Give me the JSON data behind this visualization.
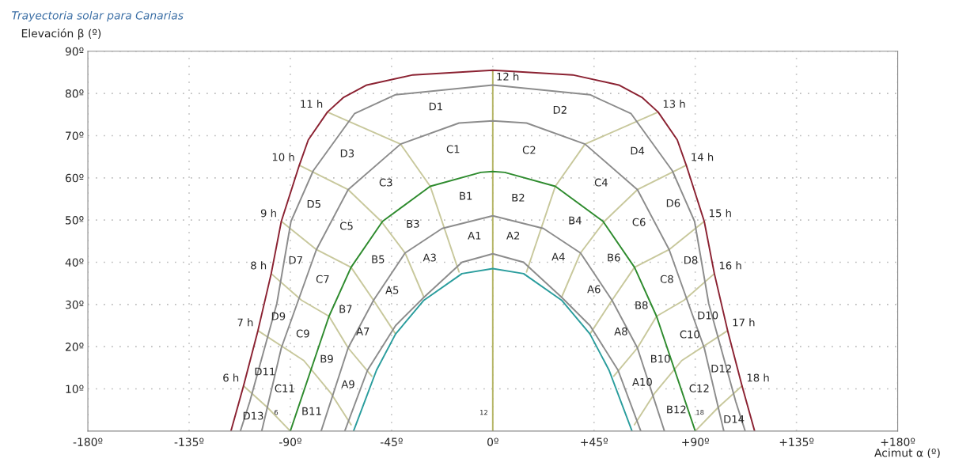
{
  "chart_data": {
    "type": "line",
    "title": "Trayectoria solar para Canarias",
    "xlabel": "Acimut α (º)",
    "ylabel": "Elevación β (º)",
    "xlim": [
      -180,
      180
    ],
    "ylim": [
      0,
      90
    ],
    "xticks": [
      {
        "value": -180,
        "label": "-180º"
      },
      {
        "value": -135,
        "label": "-135º"
      },
      {
        "value": -90,
        "label": "-90º"
      },
      {
        "value": -45,
        "label": "-45º"
      },
      {
        "value": 0,
        "label": "0º"
      },
      {
        "value": 45,
        "label": "+45º"
      },
      {
        "value": 90,
        "label": "+90º"
      },
      {
        "value": 135,
        "label": "+135º"
      },
      {
        "value": 180,
        "label": "+180º"
      }
    ],
    "yticks": [
      {
        "value": 10,
        "label": "10º"
      },
      {
        "value": 20,
        "label": "20º"
      },
      {
        "value": 30,
        "label": "30º"
      },
      {
        "value": 40,
        "label": "40º"
      },
      {
        "value": 50,
        "label": "50º"
      },
      {
        "value": 60,
        "label": "60º"
      },
      {
        "value": 70,
        "label": "70º"
      },
      {
        "value": 80,
        "label": "80º"
      },
      {
        "value": 90,
        "label": "90º"
      }
    ],
    "grid": true,
    "legend": false,
    "marker": "none",
    "line_style": "solid",
    "series": [
      {
        "color": "#c8c89c",
        "x": [
          -110.8,
          -100,
          -90
        ],
        "values": [
          10.7,
          5.5,
          0
        ]
      },
      {
        "color": "#c8c89c",
        "x": [
          -104.4,
          -84,
          -72,
          -63
        ],
        "values": [
          23.8,
          16.7,
          9,
          1.5
        ]
      },
      {
        "color": "#c8c89c",
        "x": [
          -98.5,
          -85,
          -72.8,
          -64.3,
          -53.8
        ],
        "values": [
          37.3,
          31,
          27.2,
          19.7,
          13
        ]
      },
      {
        "color": "#c8c89c",
        "x": [
          -94,
          -78.4,
          -63,
          -53,
          -43.2
        ],
        "values": [
          49.7,
          43,
          38.8,
          31,
          23
        ]
      },
      {
        "color": "#c8c89c",
        "x": [
          -86,
          -64.3,
          -49.6,
          -39,
          -30.6
        ],
        "values": [
          63,
          57.2,
          49.7,
          42.2,
          31.7
        ]
      },
      {
        "color": "#c8c89c",
        "x": [
          -73.5,
          -41,
          -27.8,
          -15
        ],
        "values": [
          75.6,
          68,
          58,
          37.7
        ]
      },
      {
        "color": "#b4b464",
        "x": [
          0,
          0
        ],
        "values": [
          0,
          85.5
        ]
      },
      {
        "color": "#c8c89c",
        "x": [
          73.5,
          41,
          27.8,
          15
        ],
        "values": [
          75.6,
          68,
          58,
          37.7
        ]
      },
      {
        "color": "#c8c89c",
        "x": [
          86,
          64.3,
          49.6,
          39,
          30.6
        ],
        "values": [
          63,
          57.2,
          49.7,
          42.2,
          31.7
        ]
      },
      {
        "color": "#c8c89c",
        "x": [
          94,
          78.4,
          63,
          53,
          43.2
        ],
        "values": [
          49.7,
          43,
          38.8,
          31,
          23
        ]
      },
      {
        "color": "#c8c89c",
        "x": [
          98.5,
          85,
          72.8,
          64.3,
          53.8
        ],
        "values": [
          37.3,
          31,
          27.2,
          19.7,
          13
        ]
      },
      {
        "color": "#c8c89c",
        "x": [
          104.4,
          84,
          72,
          63
        ],
        "values": [
          23.8,
          16.7,
          9,
          1.5
        ]
      },
      {
        "color": "#c8c89c",
        "x": [
          110.8,
          100,
          90
        ],
        "values": [
          10.7,
          5.5,
          0
        ]
      },
      {
        "color": "#8b2232",
        "x": [
          -116.4,
          -110.8,
          -104.4,
          -98.5,
          -94,
          -86,
          -82,
          -73.5,
          -66.5,
          -56,
          -35.5,
          0,
          35.5,
          56,
          66.5,
          73.5,
          82,
          86,
          94,
          98.5,
          104.4,
          110.8,
          116.4
        ],
        "values": [
          0,
          10.7,
          23.8,
          37.3,
          49.7,
          63,
          69,
          75.6,
          79,
          82,
          84.4,
          85.5,
          84.4,
          82,
          79,
          75.6,
          69,
          63,
          49.7,
          37.3,
          23.8,
          10.7,
          0
        ]
      },
      {
        "color": "#8c8c8c",
        "x": [
          -112.2,
          -108,
          -96,
          -89.7,
          -79.8,
          -61.5,
          -43.2,
          0,
          43.2,
          61.5,
          79.8,
          89.7,
          96,
          108,
          112.2
        ],
        "values": [
          0,
          7,
          30.2,
          49.7,
          61.7,
          75.2,
          79.7,
          82,
          79.7,
          75.2,
          61.7,
          49.7,
          30.2,
          7,
          0
        ]
      },
      {
        "color": "#8c8c8c",
        "x": [
          -102.7,
          -94,
          -78.4,
          -64.3,
          -41,
          -15,
          0,
          15,
          41,
          64.3,
          78.4,
          94,
          102.7
        ],
        "values": [
          0,
          19.7,
          43,
          57.2,
          68,
          73,
          73.5,
          73,
          68,
          57.2,
          43,
          19.7,
          0
        ]
      },
      {
        "color": "#2e8b2e",
        "x": [
          -90,
          -72.8,
          -63,
          -49,
          -27.8,
          -5.3,
          0,
          5.3,
          27.8,
          49,
          63,
          72.8,
          90
        ],
        "values": [
          0,
          27.2,
          38.8,
          49.7,
          58,
          61.3,
          61.5,
          61.3,
          58,
          49.7,
          38.8,
          27.2,
          0
        ]
      },
      {
        "color": "#8c8c8c",
        "x": [
          -76.3,
          -64.3,
          -53,
          -39,
          -22.5,
          0,
          22.5,
          39,
          53,
          64.3,
          76.3
        ],
        "values": [
          0,
          19.7,
          31,
          42.2,
          48,
          51,
          48,
          42.2,
          31,
          19.7,
          0
        ]
      },
      {
        "color": "#8c8c8c",
        "x": [
          -65.8,
          -55.7,
          -43.2,
          -30.6,
          -13.7,
          0,
          13.7,
          30.6,
          43.2,
          55.7,
          65.8
        ],
        "values": [
          0,
          14.4,
          25,
          31.7,
          40,
          42,
          40,
          31.7,
          25,
          14.4,
          0
        ]
      },
      {
        "color": "#2a9d9d",
        "x": [
          -61.9,
          -51.7,
          -43.2,
          -30.6,
          -13.7,
          0,
          13.7,
          30.6,
          43.2,
          51.7,
          61.9
        ],
        "values": [
          0,
          14.4,
          23,
          31,
          37.3,
          38.5,
          37.3,
          31,
          23,
          14.4,
          0
        ]
      }
    ],
    "annotations": [
      {
        "text": "6 h",
        "x": -110.8,
        "y": 10.7
      },
      {
        "text": "7 h",
        "x": -104.4,
        "y": 23.8
      },
      {
        "text": "8 h",
        "x": -98.5,
        "y": 37.3
      },
      {
        "text": "9 h",
        "x": -94,
        "y": 49.7
      },
      {
        "text": "10 h",
        "x": -86,
        "y": 63
      },
      {
        "text": "11 h",
        "x": -73.5,
        "y": 75.6
      },
      {
        "text": "12 h",
        "x": 0,
        "y": 85.5
      },
      {
        "text": "13 h",
        "x": 73.5,
        "y": 75.6
      },
      {
        "text": "14 h",
        "x": 86,
        "y": 63
      },
      {
        "text": "15 h",
        "x": 94,
        "y": 49.7
      },
      {
        "text": "16 h",
        "x": 98.5,
        "y": 37.3
      },
      {
        "text": "17 h",
        "x": 104.4,
        "y": 23.8
      },
      {
        "text": "18 h",
        "x": 110.8,
        "y": 10.7
      },
      "D1",
      "D2",
      "D3",
      "C1",
      "C2",
      "D4",
      "C3",
      "C4",
      "B1",
      "B2",
      "D5",
      "D6",
      "B3",
      "B4",
      "C5",
      "C6",
      "A1",
      "A2",
      "D7",
      "D8",
      "A3",
      "A4",
      "B5",
      "B6",
      "C7",
      "C8",
      "A5",
      "A6",
      "D9",
      "D10",
      "B7",
      "B8",
      "C9",
      "C10",
      "A7",
      "A8",
      "B9",
      "B10",
      "D11",
      "D12",
      "A9",
      "A10",
      "C11",
      "C12",
      "B11",
      "B12",
      "D13",
      "D14",
      "6",
      "12",
      "18"
    ]
  }
}
